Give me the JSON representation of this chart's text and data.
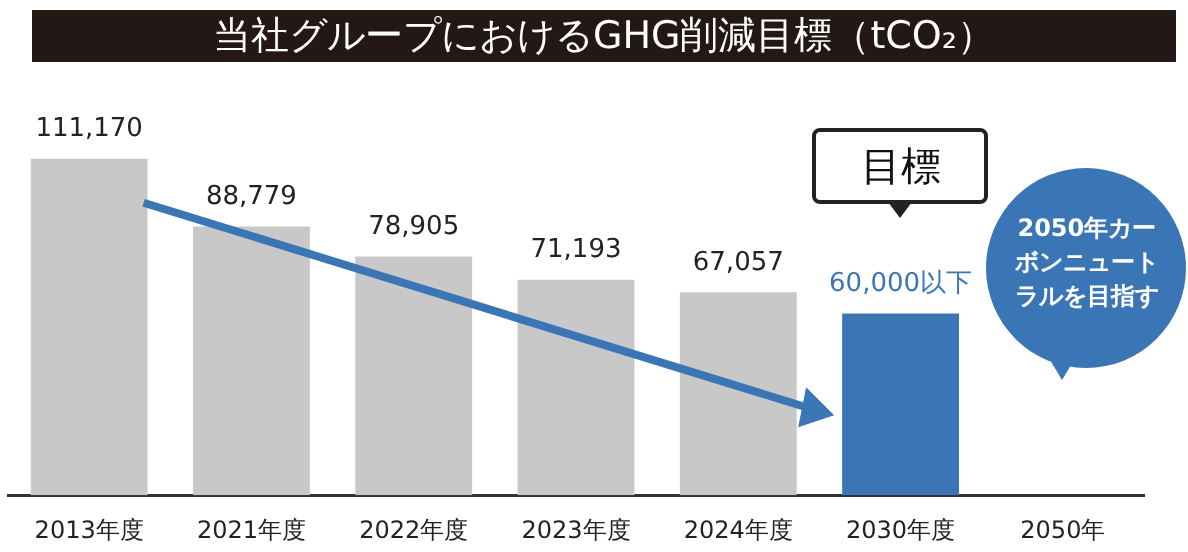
{
  "chart_data": {
    "type": "bar",
    "title": "当社グループにおけるGHG削減目標（tCO₂）",
    "categories": [
      "2013年度",
      "2021年度",
      "2022年度",
      "2023年度",
      "2024年度",
      "2030年度",
      "2050年"
    ],
    "values": [
      111170,
      88779,
      78905,
      71193,
      67057,
      60000,
      null
    ],
    "colors": [
      "#c8c8c8",
      "#c8c8c8",
      "#c8c8c8",
      "#c8c8c8",
      "#c8c8c8",
      "#3a76b5",
      "#3a76b5"
    ],
    "value_labels": [
      "111,170",
      "88,779",
      "78,905",
      "71,193",
      "67,057",
      "60,000以下",
      null
    ],
    "annotations": [
      "目標",
      "2050年カーボンニュートラルを目指す"
    ]
  }
}
